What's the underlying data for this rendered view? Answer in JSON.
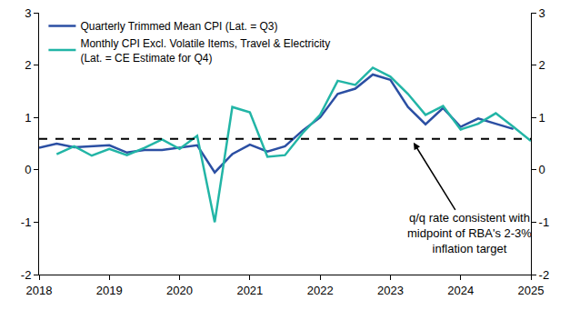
{
  "chart_data": {
    "type": "line",
    "x": [
      2018,
      2018.25,
      2018.5,
      2018.75,
      2019,
      2019.25,
      2019.5,
      2019.75,
      2020,
      2020.25,
      2020.5,
      2020.75,
      2021,
      2021.25,
      2021.5,
      2021.75,
      2022,
      2022.25,
      2022.5,
      2022.75,
      2023,
      2023.25,
      2023.5,
      2023.75,
      2024,
      2024.25,
      2024.5,
      2024.75,
      2025
    ],
    "series": [
      {
        "name": "Quarterly Trimmed Mean CPI (Lat. = Q3)",
        "color": "#2b4fa3",
        "line_style": "solid",
        "values": [
          0.42,
          0.5,
          0.43,
          0.45,
          0.47,
          0.33,
          0.38,
          0.38,
          0.42,
          0.47,
          -0.05,
          0.3,
          0.48,
          0.35,
          0.45,
          0.75,
          1.0,
          1.45,
          1.55,
          1.82,
          1.72,
          1.2,
          0.87,
          1.18,
          0.82,
          0.98,
          0.88,
          0.78,
          null
        ]
      },
      {
        "name": "Monthly CPI Excl. Volatile Items, Travel & Electricity\n(Lat. = CE Estimate for Q4)",
        "color": "#22b5a6",
        "line_style": "solid",
        "values": [
          null,
          0.3,
          0.45,
          0.27,
          0.4,
          0.28,
          0.42,
          0.58,
          0.4,
          0.65,
          -1.0,
          1.2,
          1.1,
          0.25,
          0.28,
          0.7,
          1.05,
          1.7,
          1.62,
          1.95,
          1.78,
          1.45,
          1.05,
          1.22,
          0.77,
          0.88,
          1.08,
          0.82,
          0.55
        ]
      }
    ],
    "reference_line": {
      "value": 0.59,
      "color": "#000000",
      "line_style": "dashed"
    },
    "annotations": [
      {
        "text": "q/q rate consistent with\nmidpoint of RBA's 2-3%\ninflation target",
        "x": 2023.33,
        "y": 0.52
      }
    ],
    "xlim": [
      2018,
      2025
    ],
    "xticks": [
      2018,
      2019,
      2020,
      2021,
      2022,
      2023,
      2024,
      2025
    ],
    "ylim": [
      -2,
      3
    ],
    "yticks": [
      -2,
      -1,
      0,
      1,
      2,
      3
    ],
    "y2lim": [
      -2,
      3
    ],
    "y2ticks": [
      -2,
      -1,
      0,
      1,
      2,
      3
    ],
    "grid": false,
    "legend": "top-left"
  }
}
